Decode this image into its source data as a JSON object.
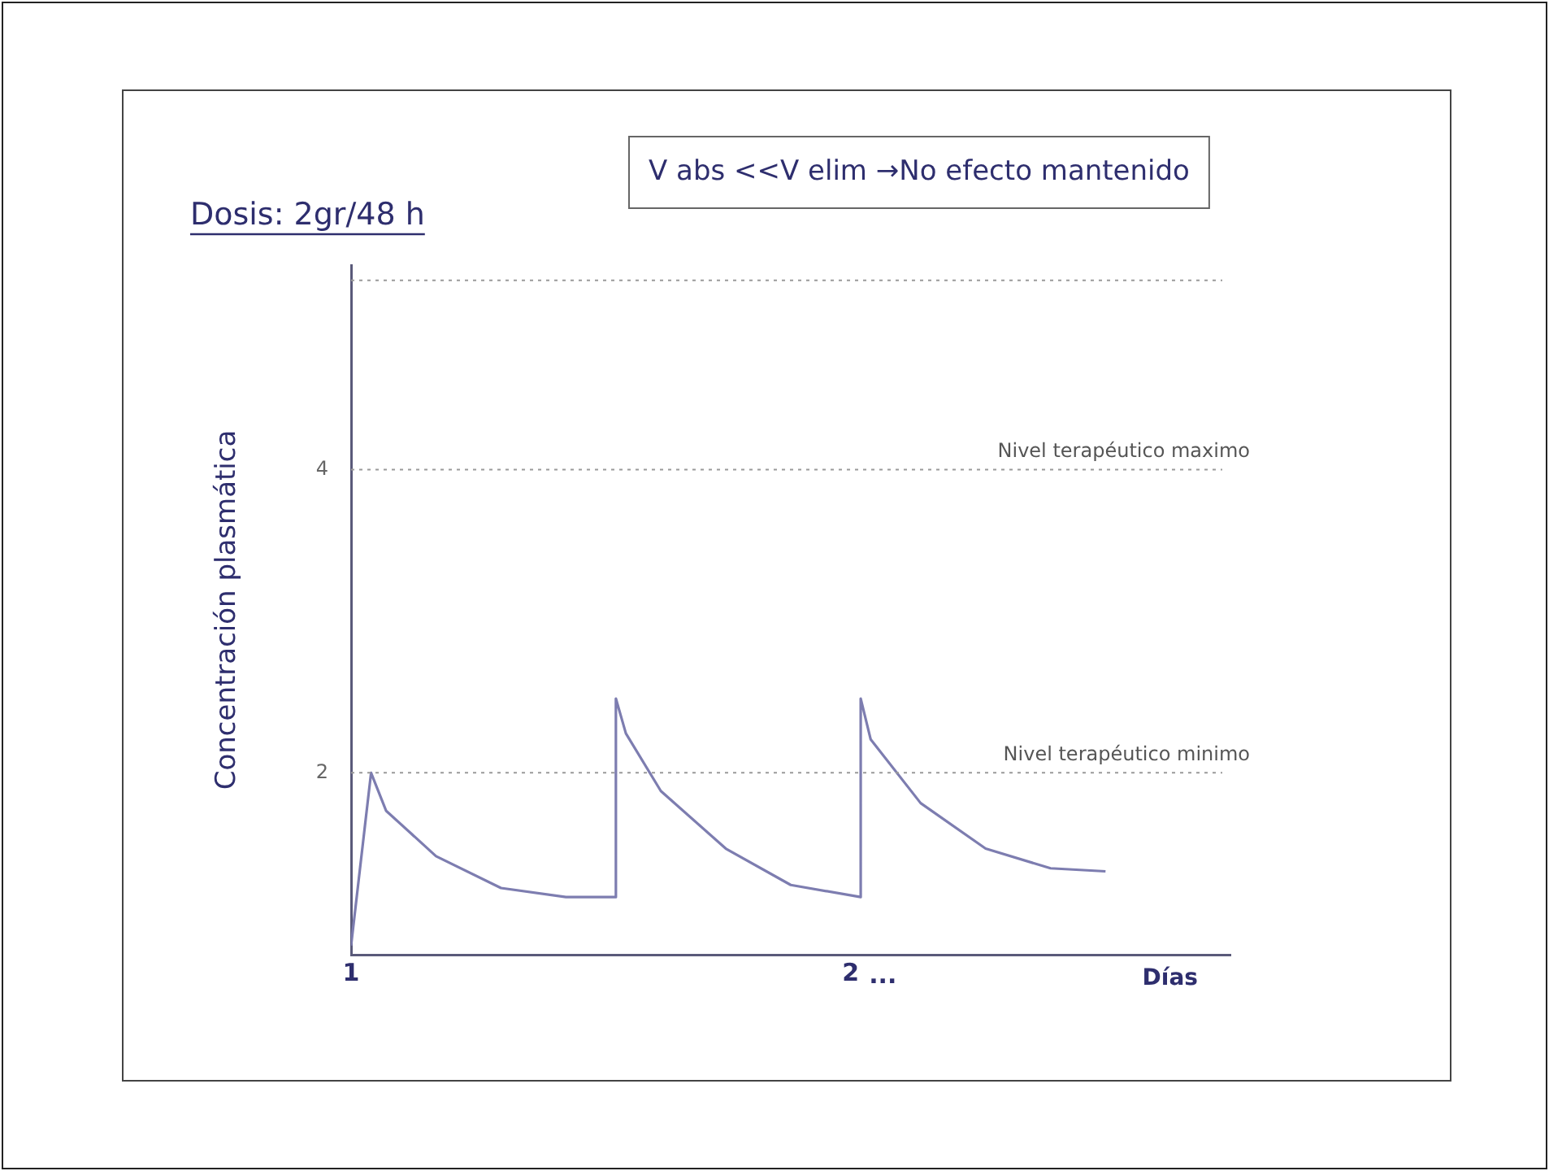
{
  "chart_data": {
    "type": "line",
    "title": "Dosis: 2gr/48 h",
    "xlabel": "Días",
    "ylabel": "Concentración plasmática",
    "annotations": [
      "V abs <<V elim →No efecto mantenido",
      "..."
    ],
    "x": [
      1.0,
      1.04,
      1.07,
      1.17,
      1.3,
      1.43,
      1.53,
      1.53,
      1.55,
      1.62,
      1.75,
      1.88,
      2.02,
      2.02,
      2.04,
      2.14,
      2.27,
      2.4,
      2.51
    ],
    "series": [
      {
        "color": "#7d7db0",
        "values": [
          0.86,
          2.0,
          1.75,
          1.45,
          1.24,
          1.18,
          1.18,
          2.49,
          2.26,
          1.88,
          1.5,
          1.26,
          1.18,
          2.49,
          2.22,
          1.8,
          1.5,
          1.37,
          1.35
        ]
      }
    ],
    "xlim": [
      1,
      2.76
    ],
    "xticks": [
      1,
      2
    ],
    "ylim": [
      0.8,
      5.35
    ],
    "yticks": [
      2,
      4
    ],
    "ref_lines": [
      {
        "axis": "y",
        "value": 5.25,
        "label": null,
        "color": "#9a9a9a",
        "line_style": "dotted"
      },
      {
        "axis": "y",
        "value": 4,
        "label": "Nivel terapéutico maximo",
        "color": "#9a9a9a",
        "line_style": "dotted"
      },
      {
        "axis": "y",
        "value": 2,
        "label": "Nivel terapéutico minimo",
        "color": "#9a9a9a",
        "line_style": "dotted"
      }
    ],
    "grid": false,
    "legend": false,
    "marker": "none",
    "line_style": "solid"
  }
}
